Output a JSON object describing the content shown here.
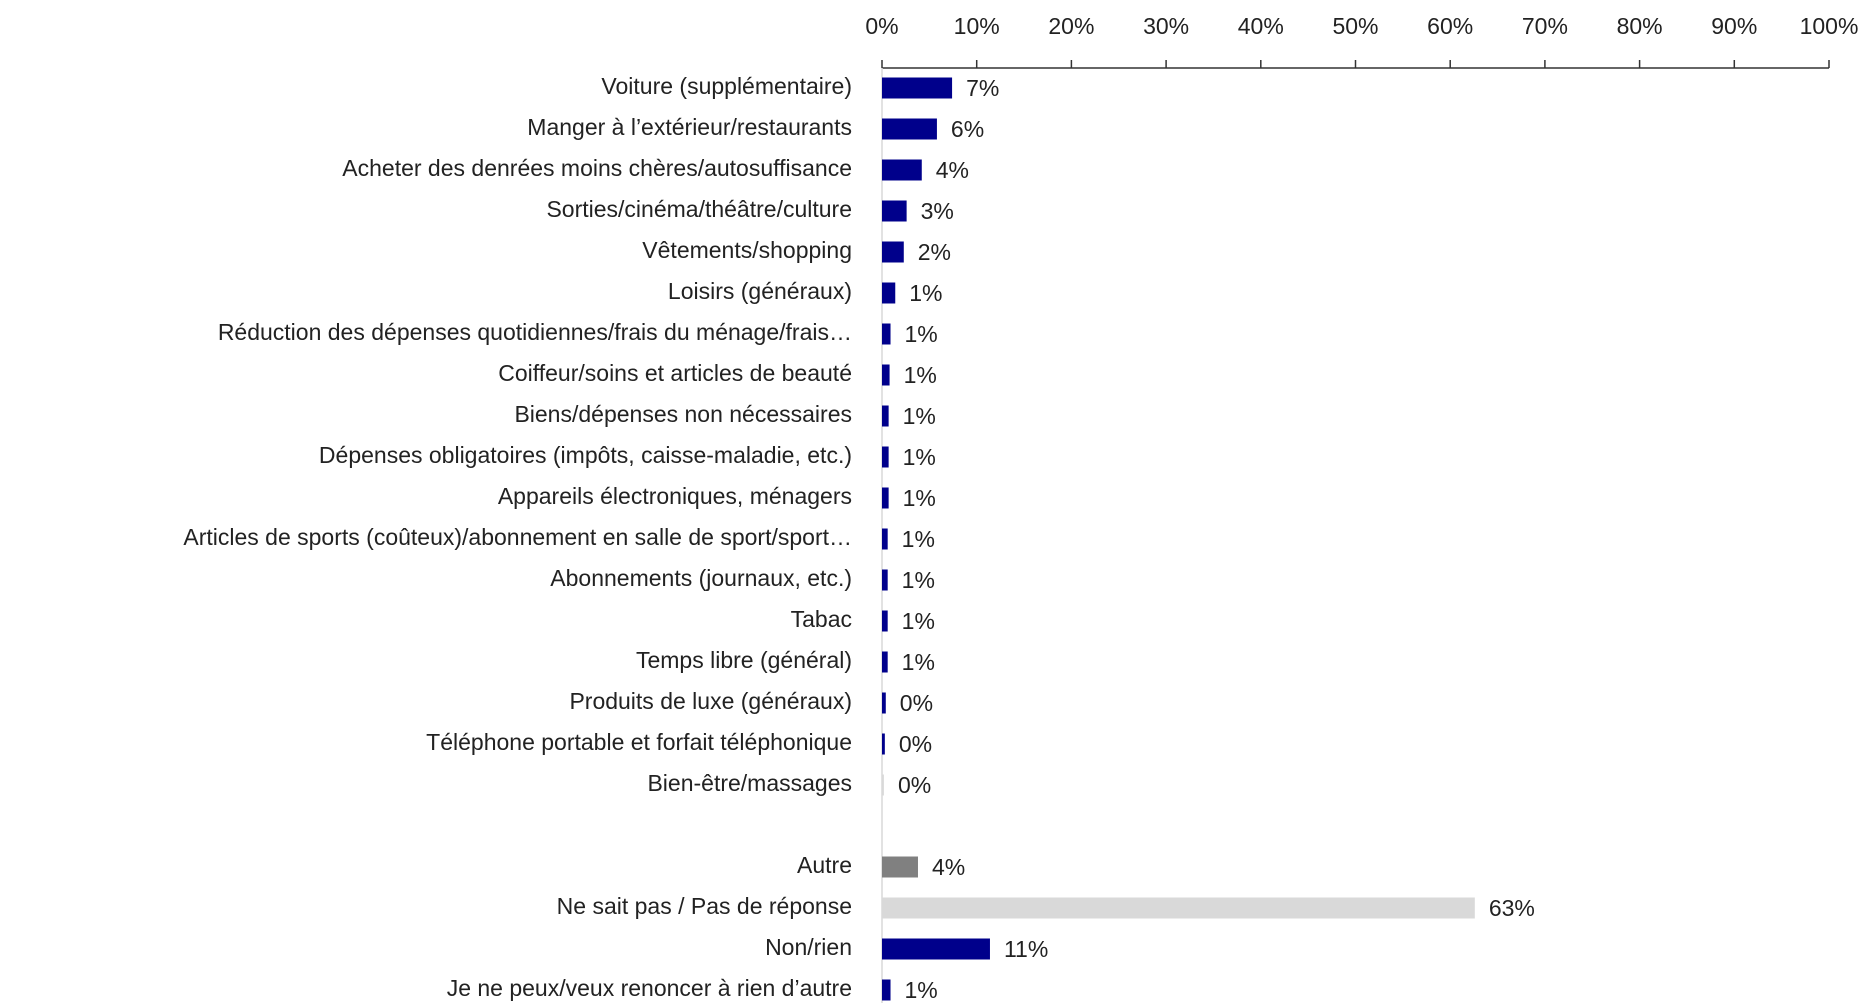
{
  "chart_data": {
    "type": "hbar",
    "categories": [
      "Voiture (supplémentaire)",
      "Manger à l’extérieur/restaurants",
      "Acheter des denrées moins chères/autosuffisance",
      "Sorties/cinéma/théâtre/culture",
      "Vêtements/shopping",
      "Loisirs (généraux)",
      "Réduction des dépenses quotidiennes/frais du ménage/frais…",
      "Coiffeur/soins et articles de beauté",
      "Biens/dépenses non nécessaires",
      "Dépenses obligatoires (impôts, caisse-maladie, etc.)",
      "Appareils électroniques, ménagers",
      "Articles de sports (coûteux)/abonnement en salle de sport/sport…",
      "Abonnements (journaux, etc.)",
      "Tabac",
      "Temps libre (général)",
      "Produits de luxe (généraux)",
      "Téléphone portable et forfait téléphonique",
      "Bien-être/massages",
      null,
      "Autre",
      "Ne sait pas / Pas de réponse",
      "Non/rien",
      "Je ne peux/veux renoncer à rien d’autre"
    ],
    "values": [
      7.4,
      5.8,
      4.2,
      2.6,
      2.3,
      1.4,
      0.9,
      0.8,
      0.7,
      0.7,
      0.7,
      0.6,
      0.6,
      0.6,
      0.6,
      0.4,
      0.3,
      0.2,
      null,
      3.8,
      62.6,
      11.4,
      0.9
    ],
    "value_labels": [
      "7%",
      "6%",
      "4%",
      "3%",
      "2%",
      "1%",
      "1%",
      "1%",
      "1%",
      "1%",
      "1%",
      "1%",
      "1%",
      "1%",
      "1%",
      "0%",
      "0%",
      "0%",
      null,
      "4%",
      "63%",
      "11%",
      "1%"
    ],
    "colors": [
      "#00008b",
      "#00008b",
      "#00008b",
      "#00008b",
      "#00008b",
      "#00008b",
      "#00008b",
      "#00008b",
      "#00008b",
      "#00008b",
      "#00008b",
      "#00008b",
      "#00008b",
      "#00008b",
      "#00008b",
      "#00008b",
      "#00008b",
      "#d9d9d9",
      null,
      "#808080",
      "#d9d9d9",
      "#00008b",
      "#00008b"
    ],
    "xlim": [
      0,
      100
    ],
    "xticks": [
      {
        "value": 0,
        "label": "0%"
      },
      {
        "value": 10,
        "label": "10%"
      },
      {
        "value": 20,
        "label": "20%"
      },
      {
        "value": 30,
        "label": "30%"
      },
      {
        "value": 40,
        "label": "40%"
      },
      {
        "value": 50,
        "label": "50%"
      },
      {
        "value": 60,
        "label": "60%"
      },
      {
        "value": 70,
        "label": "70%"
      },
      {
        "value": 80,
        "label": "80%"
      },
      {
        "value": 90,
        "label": "90%"
      },
      {
        "value": 100,
        "label": "100%"
      }
    ],
    "xaxis_position": "top"
  }
}
